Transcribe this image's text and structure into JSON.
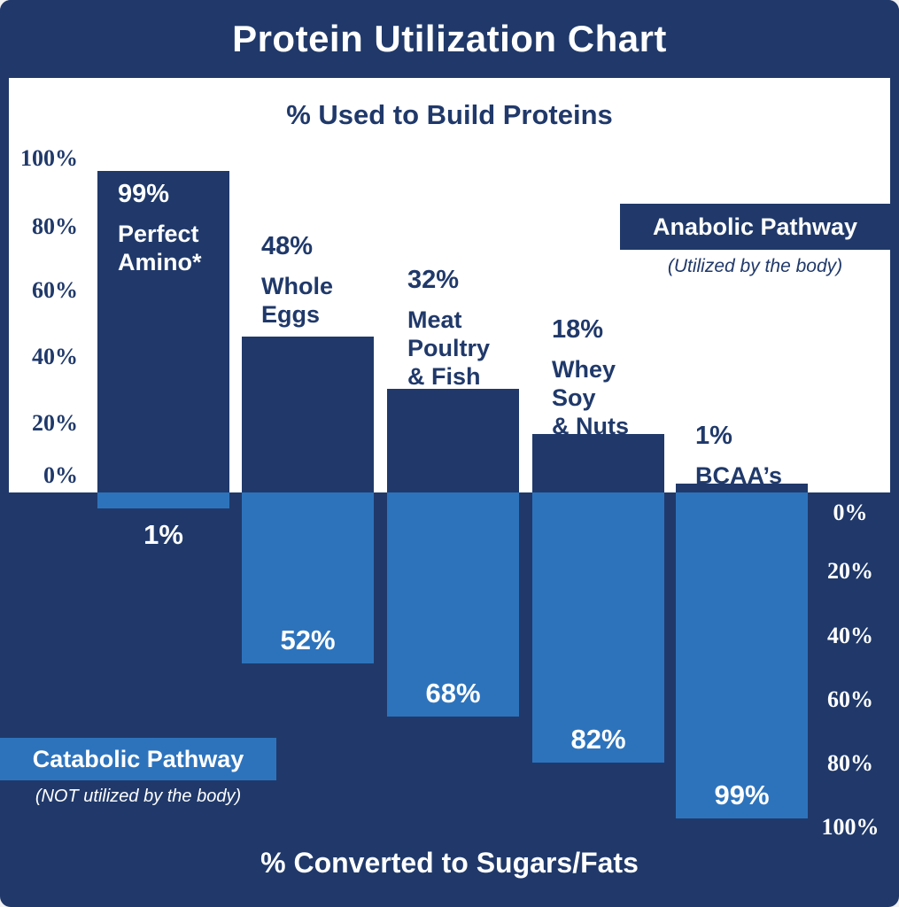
{
  "title": "Protein Utilization Chart",
  "colors": {
    "navy": "#20396a",
    "light_blue": "#2d73bc",
    "white": "#ffffff"
  },
  "legend": {
    "anabolic": {
      "label": "Anabolic Pathway",
      "note": "(Utilized by the body)"
    },
    "catabolic": {
      "label": "Catabolic Pathway",
      "note": "(NOT utilized by the body)"
    }
  },
  "chart_data": {
    "type": "bar",
    "title": "Protein Utilization Chart",
    "categories": [
      "Perfect Amino*",
      "Whole Eggs",
      "Meat Poultry & Fish",
      "Whey Soy & Nuts",
      "BCAA’s"
    ],
    "series": [
      {
        "name": "Anabolic Pathway (% Used to Build Proteins)",
        "values": [
          99,
          48,
          32,
          18,
          1
        ]
      },
      {
        "name": "Catabolic Pathway (% Converted to Sugars/Fats)",
        "values": [
          1,
          52,
          68,
          82,
          99
        ]
      }
    ],
    "top_axis": {
      "label": "% Used to Build Proteins",
      "ticks": [
        "100%",
        "80%",
        "60%",
        "40%",
        "20%",
        "0%"
      ],
      "range": [
        0,
        100
      ],
      "grid": false
    },
    "bottom_axis": {
      "label": "% Converted to Sugars/Fats",
      "ticks": [
        "0%",
        "20%",
        "40%",
        "60%",
        "80%",
        "100%"
      ],
      "range": [
        0,
        100
      ],
      "grid": false
    },
    "layout": "diverging-bars, anabolic up on white panel, catabolic down on navy panel"
  },
  "bars": [
    {
      "value_label": "99%",
      "name_lines": [
        "Perfect",
        "Amino*"
      ],
      "down_label": "1%"
    },
    {
      "value_label": "48%",
      "name_lines": [
        "Whole",
        "Eggs"
      ],
      "down_label": "52%"
    },
    {
      "value_label": "32%",
      "name_lines": [
        "Meat",
        "Poultry",
        "& Fish"
      ],
      "down_label": "68%"
    },
    {
      "value_label": "18%",
      "name_lines": [
        "Whey",
        "Soy",
        "& Nuts"
      ],
      "down_label": "82%"
    },
    {
      "value_label": "1%",
      "name_lines": [
        "BCAA’s"
      ],
      "down_label": "99%"
    }
  ]
}
